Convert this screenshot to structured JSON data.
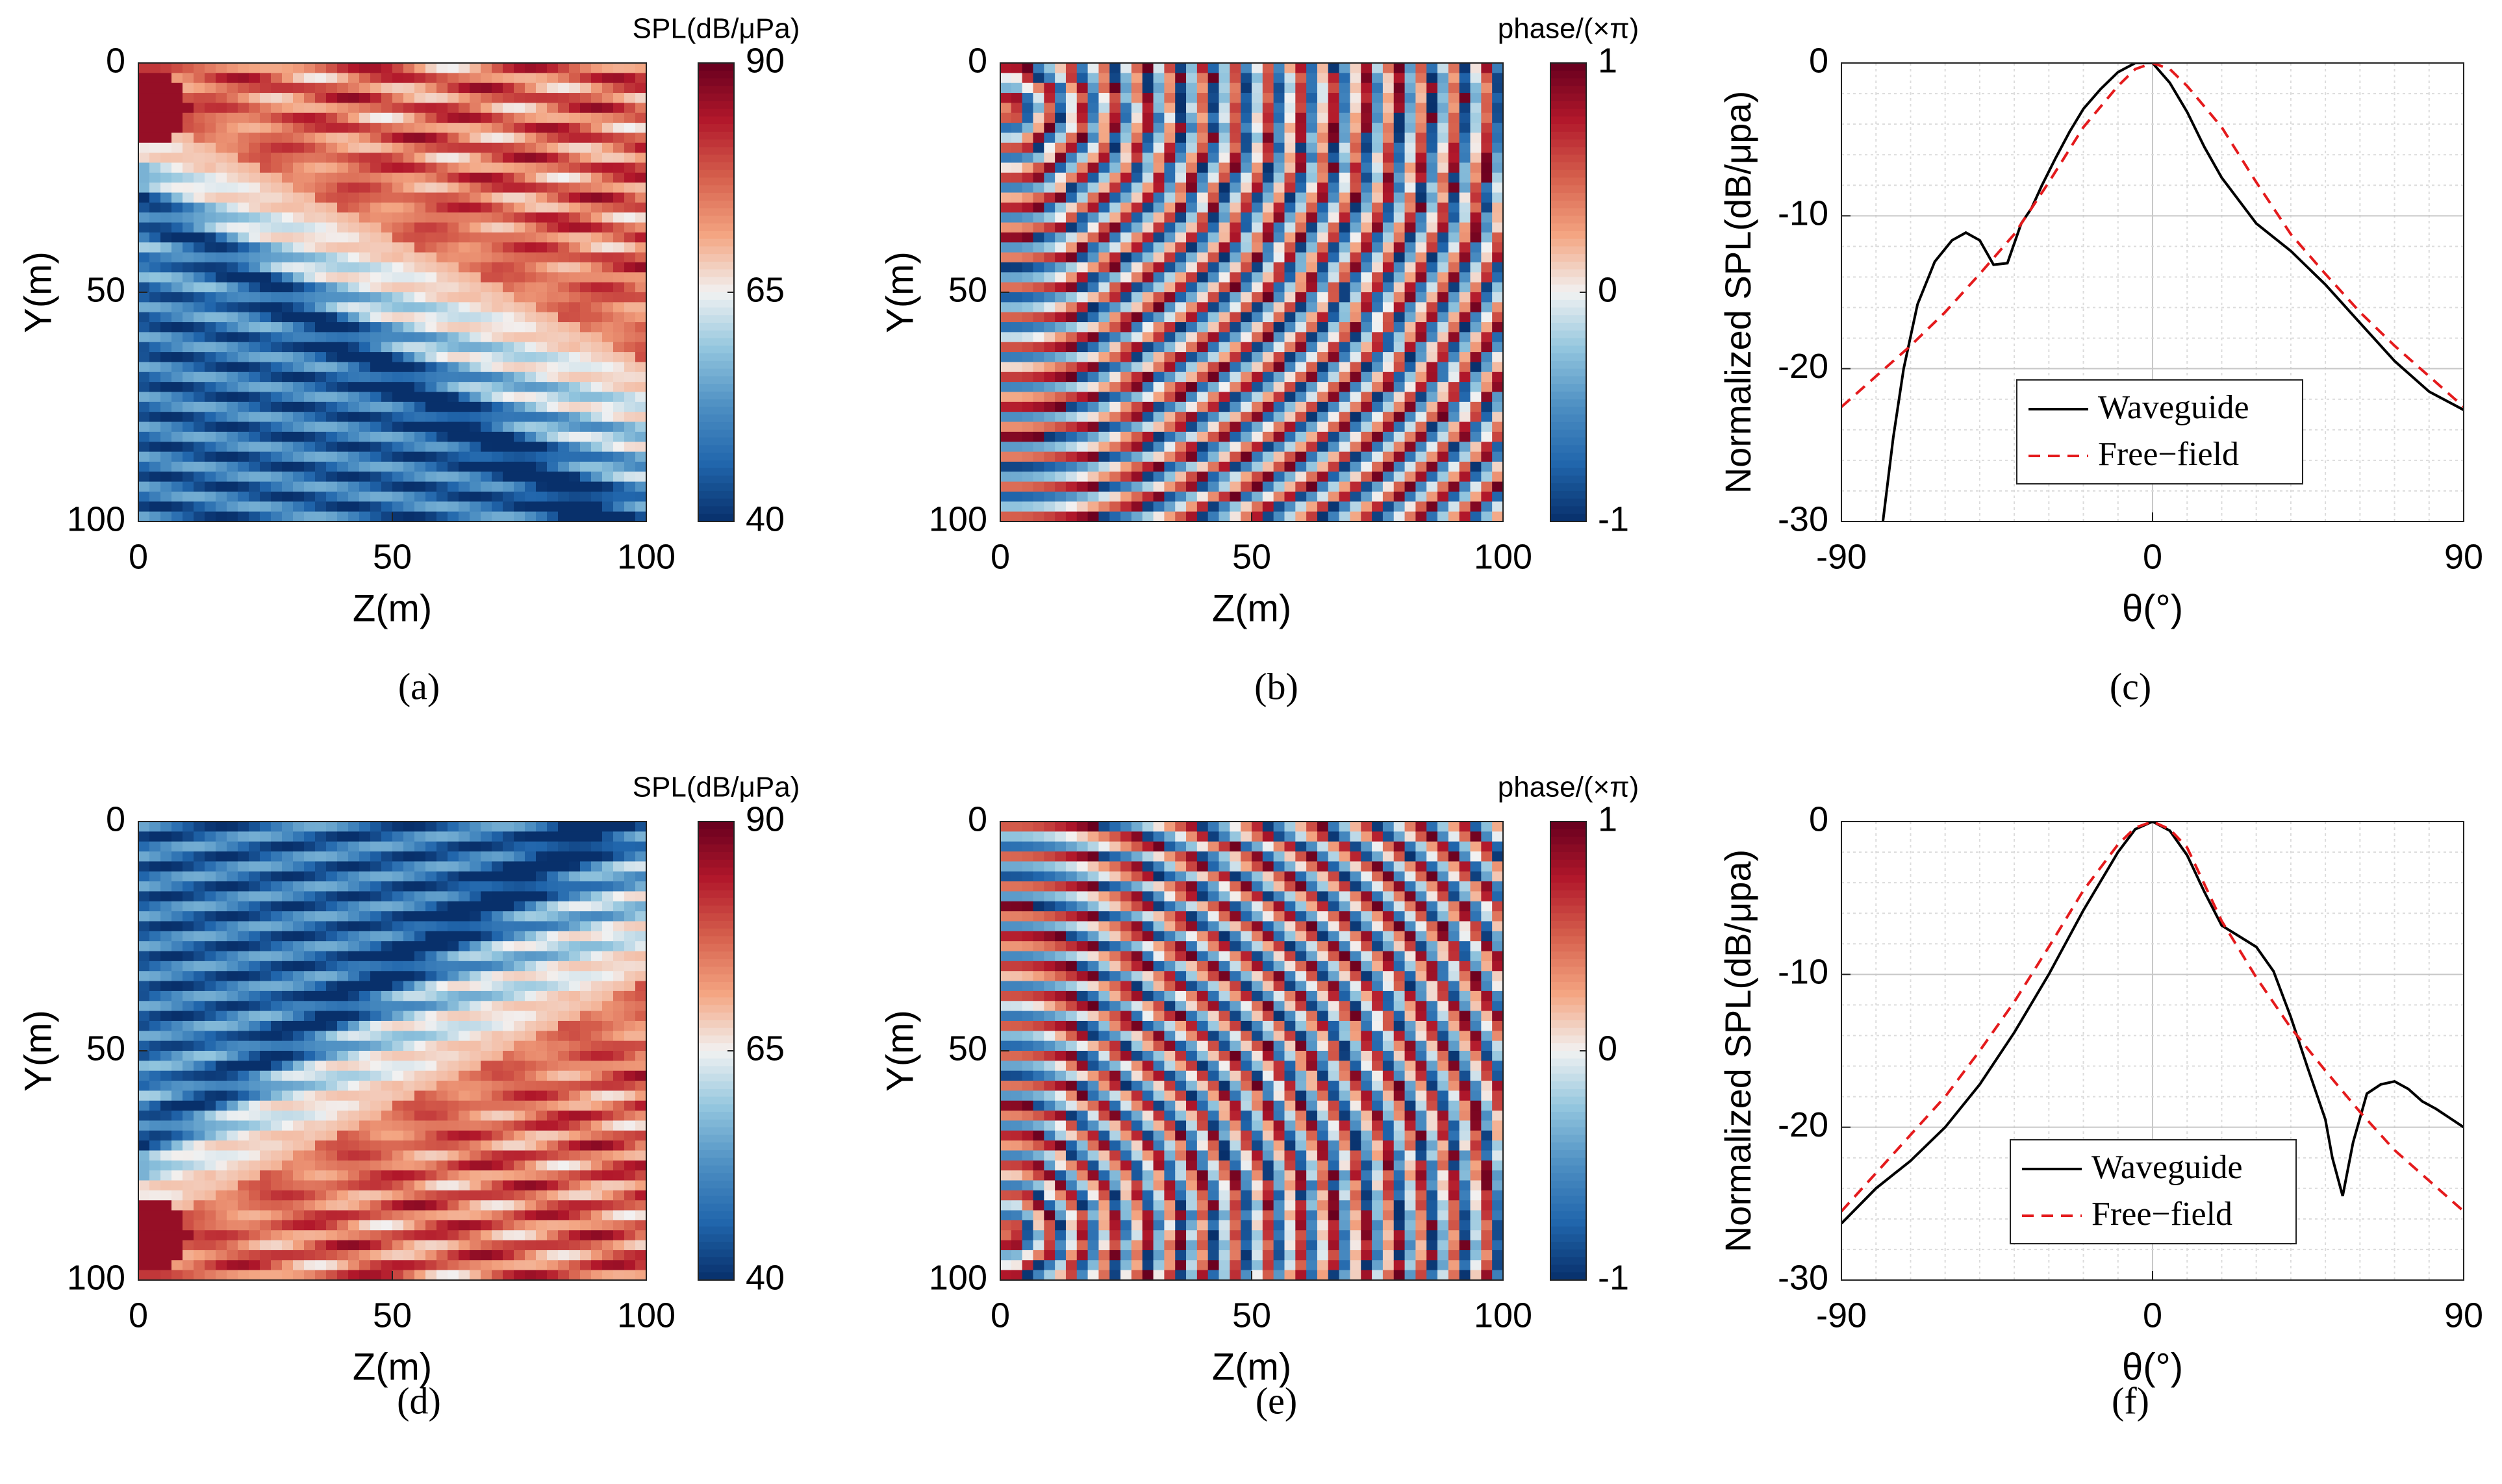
{
  "colorbar_colors": [
    "#08306b",
    "#2166ac",
    "#4d8fc3",
    "#92c5de",
    "#f2f2f2",
    "#f4a582",
    "#d6604d",
    "#b2182b",
    "#67001f"
  ],
  "line_colors": {
    "waveguide": "#000000",
    "free_field": "#e41a1c"
  },
  "chart_data": [
    {
      "panel": "a",
      "type": "heatmap",
      "caption": "(a)",
      "xlabel": "Z(m)",
      "ylabel": "Y(m)",
      "xlim": [
        0,
        100
      ],
      "ylim": [
        0,
        100
      ],
      "y_reversed": true,
      "xticks": [
        "0",
        "50",
        "100"
      ],
      "yticks": [
        "0",
        "50",
        "100"
      ],
      "colorbar": {
        "label": "SPL(dB/μPa)",
        "range": [
          40,
          90
        ],
        "ticks": [
          "90",
          "65",
          "40"
        ]
      },
      "field": "spl",
      "source": {
        "z": 2,
        "y": 10
      }
    },
    {
      "panel": "b",
      "type": "heatmap",
      "caption": "(b)",
      "xlabel": "Z(m)",
      "ylabel": "Y(m)",
      "xlim": [
        0,
        100
      ],
      "ylim": [
        0,
        100
      ],
      "y_reversed": true,
      "xticks": [
        "0",
        "50",
        "100"
      ],
      "yticks": [
        "0",
        "50",
        "100"
      ],
      "colorbar": {
        "label": "phase/(×π)",
        "range": [
          -1,
          1
        ],
        "ticks": [
          "1",
          "0",
          "-1"
        ]
      },
      "field": "phase",
      "source": {
        "z": 2,
        "y": 10
      }
    },
    {
      "panel": "c",
      "type": "line",
      "caption": "(c)",
      "xlabel": "θ(°)",
      "ylabel": "Normalized SPL(dB/μpa)",
      "xlim": [
        -90,
        90
      ],
      "ylim": [
        -30,
        0
      ],
      "xticks": [
        "-90",
        "0",
        "90"
      ],
      "yticks": [
        "0",
        "-10",
        "-20",
        "-30"
      ],
      "grid": true,
      "legend_position": "lower-center",
      "series": [
        {
          "name": "Waveguide",
          "style": "solid",
          "x": [
            -78,
            -75,
            -72,
            -68,
            -63,
            -58,
            -54,
            -50,
            -46,
            -42,
            -38,
            -35,
            -32,
            -28,
            -24,
            -20,
            -15,
            -10,
            -5,
            0,
            5,
            10,
            15,
            20,
            25,
            30,
            40,
            50,
            60,
            70,
            80,
            90
          ],
          "y": [
            -30,
            -24.5,
            -20,
            -15.8,
            -13,
            -11.6,
            -11.1,
            -11.6,
            -13.2,
            -13.1,
            -10.5,
            -9.5,
            -8.0,
            -6.2,
            -4.5,
            -3.0,
            -1.7,
            -0.6,
            0,
            0,
            -1.3,
            -3.2,
            -5.5,
            -7.5,
            -9.0,
            -10.5,
            -12.3,
            -14.5,
            -17,
            -19.5,
            -21.5,
            -22.7
          ]
        },
        {
          "name": "Free−field",
          "style": "dashed",
          "x": [
            -90,
            -80,
            -70,
            -60,
            -50,
            -40,
            -30,
            -20,
            -10,
            -5,
            0,
            5,
            10,
            20,
            30,
            40,
            50,
            60,
            70,
            80,
            90
          ],
          "y": [
            -22.5,
            -20.5,
            -18.5,
            -16.3,
            -13.8,
            -11.2,
            -7.8,
            -4.2,
            -1.5,
            -0.4,
            0,
            -0.4,
            -1.5,
            -4.2,
            -7.8,
            -11.2,
            -13.8,
            -16.3,
            -18.5,
            -20.5,
            -22.5
          ]
        }
      ]
    },
    {
      "panel": "d",
      "type": "heatmap",
      "caption": "(d)",
      "xlabel": "Z(m)",
      "ylabel": "Y(m)",
      "xlim": [
        0,
        100
      ],
      "ylim": [
        0,
        100
      ],
      "y_reversed": true,
      "xticks": [
        "0",
        "50",
        "100"
      ],
      "yticks": [
        "0",
        "50",
        "100"
      ],
      "colorbar": {
        "label": "SPL(dB/μPa)",
        "range": [
          40,
          90
        ],
        "ticks": [
          "90",
          "65",
          "40"
        ]
      },
      "field": "spl",
      "source": {
        "z": 2,
        "y": 90
      }
    },
    {
      "panel": "e",
      "type": "heatmap",
      "caption": "(e)",
      "xlabel": "Z(m)",
      "ylabel": "Y(m)",
      "xlim": [
        0,
        100
      ],
      "ylim": [
        0,
        100
      ],
      "y_reversed": true,
      "xticks": [
        "0",
        "50",
        "100"
      ],
      "yticks": [
        "0",
        "50",
        "100"
      ],
      "colorbar": {
        "label": "phase/(×π)",
        "range": [
          -1,
          1
        ],
        "ticks": [
          "1",
          "0",
          "-1"
        ]
      },
      "field": "phase",
      "source": {
        "z": 2,
        "y": 90
      }
    },
    {
      "panel": "f",
      "type": "line",
      "caption": "(f)",
      "xlabel": "θ(°)",
      "ylabel": "Normalized SPL(dB/μpa)",
      "xlim": [
        -90,
        90
      ],
      "ylim": [
        -30,
        0
      ],
      "xticks": [
        "-90",
        "0",
        "90"
      ],
      "yticks": [
        "0",
        "-10",
        "-20",
        "-30"
      ],
      "grid": true,
      "legend_position": "lower-center",
      "series": [
        {
          "name": "Waveguide",
          "style": "solid",
          "x": [
            -90,
            -80,
            -70,
            -60,
            -50,
            -40,
            -30,
            -20,
            -10,
            -5,
            0,
            5,
            10,
            15,
            20,
            25,
            30,
            35,
            40,
            45,
            50,
            52,
            55,
            58,
            62,
            66,
            70,
            74,
            78,
            82,
            86,
            90
          ],
          "y": [
            -26.3,
            -24.0,
            -22.2,
            -20.0,
            -17.2,
            -13.8,
            -10.0,
            -5.8,
            -2.0,
            -0.5,
            0,
            -0.6,
            -2.2,
            -4.6,
            -6.8,
            -7.5,
            -8.2,
            -9.8,
            -12.8,
            -16.2,
            -19.5,
            -22,
            -24.5,
            -21,
            -17.8,
            -17.2,
            -17.0,
            -17.5,
            -18.3,
            -18.8,
            -19.4,
            -20
          ]
        },
        {
          "name": "Free−field",
          "style": "dashed",
          "x": [
            -90,
            -80,
            -70,
            -60,
            -50,
            -40,
            -30,
            -20,
            -10,
            -5,
            0,
            5,
            10,
            20,
            30,
            40,
            50,
            60,
            70,
            80,
            90
          ],
          "y": [
            -25.5,
            -23,
            -20.5,
            -18,
            -15,
            -11.8,
            -8.2,
            -4.5,
            -1.5,
            -0.4,
            0,
            -0.5,
            -1.7,
            -6.5,
            -10.2,
            -13.5,
            -16.3,
            -19,
            -21.5,
            -23.5,
            -25.5
          ]
        }
      ]
    }
  ]
}
